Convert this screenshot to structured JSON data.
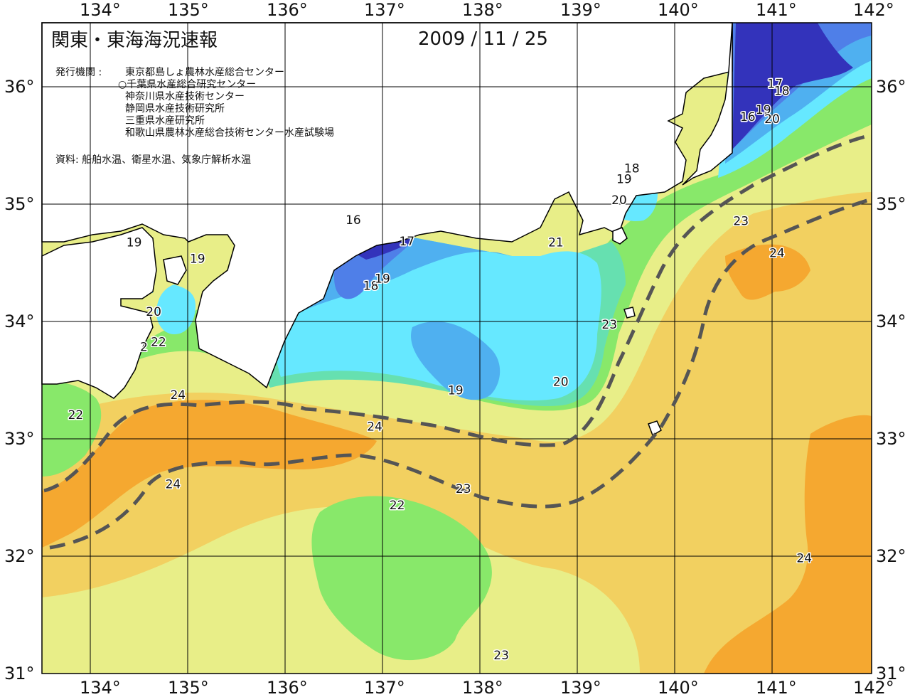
{
  "header": {
    "title": "関東・東海海況速報",
    "date": "2009 / 11 / 25",
    "publisher_label": "発行機関 :",
    "publishers": [
      "東京都島しょ農林水産総合センター",
      "○千葉県水産総合研究センター",
      "神奈川県水産技術センター",
      "静岡県水産技術研究所",
      "三重県水産研究所",
      "和歌山県農林水産総合技術センター水産試験場"
    ],
    "source": "資料: 船舶水温、衛星水温、気象庁解析水温"
  },
  "axes": {
    "longitude_labels": [
      "134°",
      "135°",
      "136°",
      "137°",
      "138°",
      "139°",
      "140°",
      "141°",
      "142°"
    ],
    "latitude_labels": [
      "36°",
      "35°",
      "34°",
      "33°",
      "32°",
      "31°"
    ]
  },
  "contour_labels": [
    {
      "text": "16",
      "lon": 136.7,
      "lat": 34.83
    },
    {
      "text": "17",
      "lon": 137.25,
      "lat": 34.65
    },
    {
      "text": "18",
      "lon": 136.88,
      "lat": 34.27
    },
    {
      "text": "19",
      "lon": 137.0,
      "lat": 34.33
    },
    {
      "text": "19",
      "lon": 134.45,
      "lat": 34.64
    },
    {
      "text": "19",
      "lon": 135.1,
      "lat": 34.5
    },
    {
      "text": "20",
      "lon": 134.65,
      "lat": 34.05
    },
    {
      "text": "2",
      "lon": 134.55,
      "lat": 33.75
    },
    {
      "text": "22",
      "lon": 134.7,
      "lat": 33.79
    },
    {
      "text": "22",
      "lon": 133.85,
      "lat": 33.17
    },
    {
      "text": "24",
      "lon": 134.9,
      "lat": 33.34
    },
    {
      "text": "24",
      "lon": 136.92,
      "lat": 33.07
    },
    {
      "text": "24",
      "lon": 134.85,
      "lat": 32.58
    },
    {
      "text": "23",
      "lon": 137.83,
      "lat": 32.54
    },
    {
      "text": "22",
      "lon": 137.15,
      "lat": 32.4
    },
    {
      "text": "19",
      "lon": 137.75,
      "lat": 33.38
    },
    {
      "text": "20",
      "lon": 138.83,
      "lat": 33.45
    },
    {
      "text": "21",
      "lon": 138.78,
      "lat": 34.64
    },
    {
      "text": "20",
      "lon": 139.43,
      "lat": 35.0
    },
    {
      "text": "19",
      "lon": 139.48,
      "lat": 35.18
    },
    {
      "text": "18",
      "lon": 139.56,
      "lat": 35.27
    },
    {
      "text": "23",
      "lon": 139.33,
      "lat": 33.94
    },
    {
      "text": "23",
      "lon": 140.68,
      "lat": 34.82
    },
    {
      "text": "24",
      "lon": 141.05,
      "lat": 34.55
    },
    {
      "text": "16",
      "lon": 140.75,
      "lat": 35.71
    },
    {
      "text": "19",
      "lon": 140.91,
      "lat": 35.77
    },
    {
      "text": "20",
      "lon": 141.0,
      "lat": 35.69
    },
    {
      "text": "17",
      "lon": 141.03,
      "lat": 35.99
    },
    {
      "text": "18",
      "lon": 141.1,
      "lat": 35.93
    },
    {
      "text": "24",
      "lon": 141.33,
      "lat": 31.95
    },
    {
      "text": "23",
      "lon": 138.22,
      "lat": 31.12
    }
  ],
  "colors": {
    "t16": "#3333bb",
    "t17": "#4f7fe8",
    "t18": "#4fb0f0",
    "t19": "#66e8ff",
    "t20": "#66e0b0",
    "t21": "#88e86a",
    "t22": "#b8ea66",
    "t23": "#e8ee88",
    "t24": "#f2d060",
    "t25": "#f5a830",
    "land": "#ffffff",
    "grid": "#000000",
    "kuroshio": "#555555"
  }
}
